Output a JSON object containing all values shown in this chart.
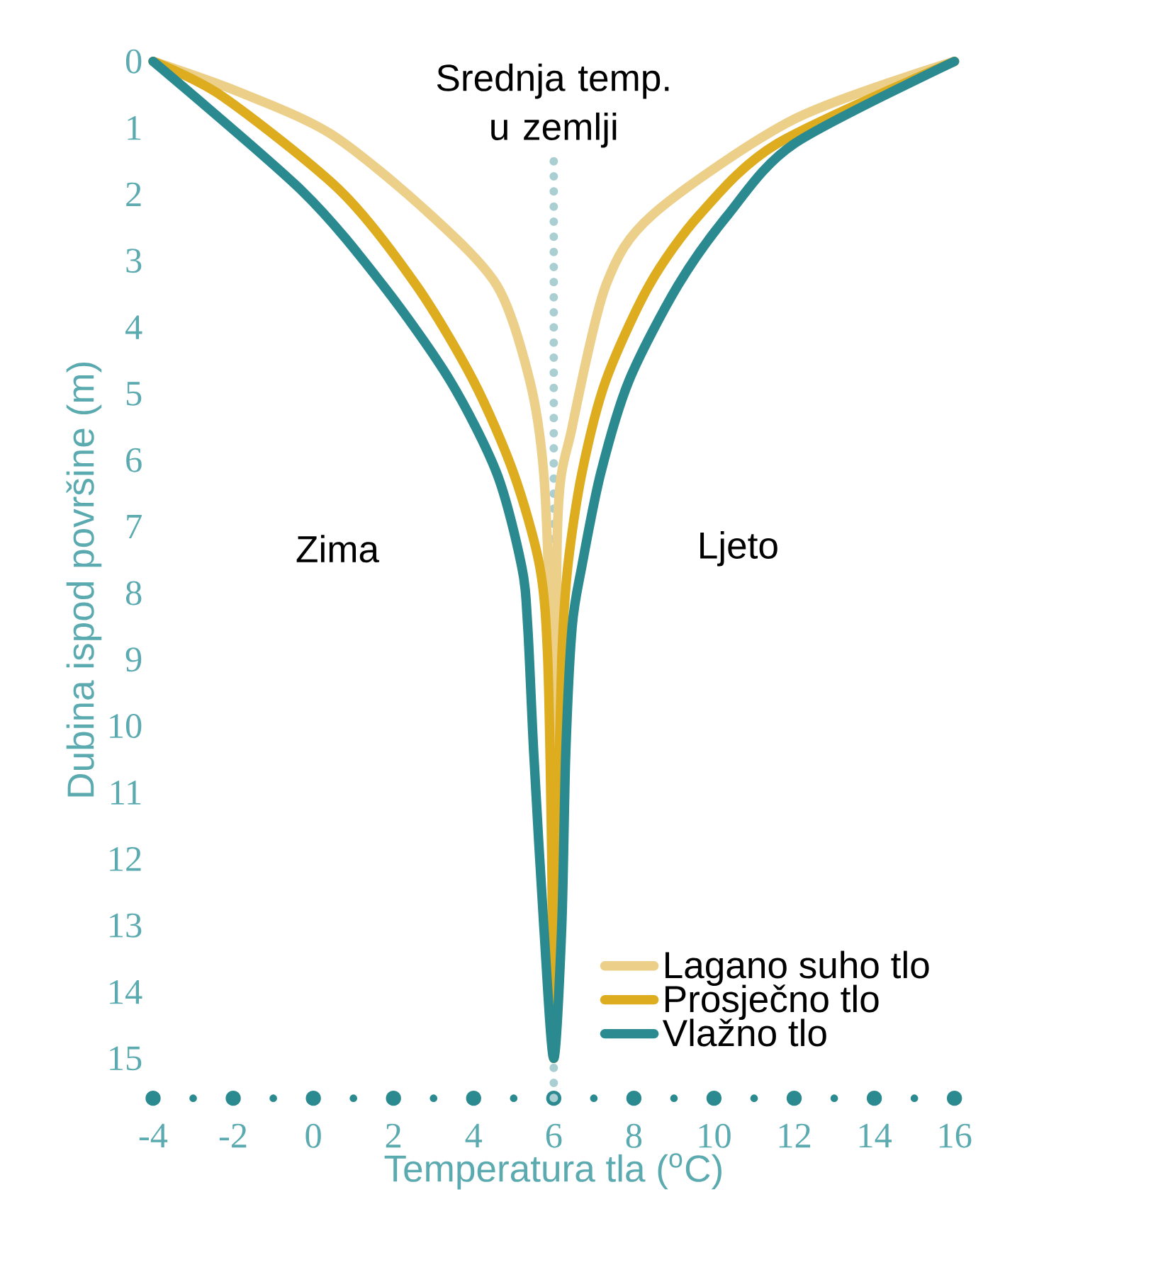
{
  "chart_data": {
    "type": "line",
    "xlabel": "Temperatura tla ($^{o}$C)",
    "ylabel": "Dubina ispod površine (m)",
    "xlim": [
      -4,
      16
    ],
    "ylim": [
      15.6,
      0
    ],
    "xticks": [
      -4,
      -2,
      0,
      2,
      4,
      6,
      8,
      10,
      12,
      14,
      16
    ],
    "yticks": [
      0,
      1,
      2,
      3,
      4,
      5,
      6,
      7,
      8,
      9,
      10,
      11,
      12,
      13,
      14,
      15
    ],
    "series": [
      {
        "name": "Lagano suho tlo",
        "color": "#ecd08a",
        "x": [
          -4,
          -1.9,
          0.43,
          2.8,
          4.58,
          5.4,
          5.75,
          5.9,
          5.97,
          6,
          6.03,
          6.1,
          6.46,
          7.3,
          8.48,
          12.0,
          16
        ],
        "values": [
          0,
          0.45,
          1.09,
          2.24,
          3.37,
          4.8,
          6.2,
          8.5,
          12,
          15,
          12,
          6.9,
          5.5,
          3.37,
          2.3,
          0.87,
          0
        ]
      },
      {
        "name": "Prosječno tlo",
        "color": "#ddac1f",
        "x": [
          -4,
          -2.26,
          0.68,
          2.57,
          3.99,
          5.0,
          5.65,
          5.85,
          5.95,
          6,
          6.08,
          6.2,
          6.35,
          6.7,
          7.3,
          8.38,
          9.65,
          11.57,
          16
        ],
        "values": [
          0,
          0.53,
          1.95,
          3.37,
          4.8,
          6.2,
          7.6,
          9,
          12,
          15,
          12,
          9,
          7.6,
          6.2,
          4.8,
          3.37,
          2.3,
          1.24,
          0
        ]
      },
      {
        "name": "Vlažno tlo",
        "color": "#2a8a90",
        "x": [
          -4,
          -0.28,
          1.74,
          3.41,
          4.58,
          5.2,
          5.35,
          5.5,
          5.75,
          6,
          6.2,
          6.3,
          6.46,
          6.7,
          7.17,
          7.88,
          9.1,
          10.36,
          12.0,
          16
        ],
        "values": [
          0,
          1.95,
          3.37,
          4.8,
          6.2,
          7.6,
          8.5,
          10.4,
          13,
          15,
          13,
          10.4,
          8.5,
          7.6,
          6.2,
          4.8,
          3.37,
          2.3,
          1.24,
          0
        ]
      }
    ],
    "ref_lines": [
      {
        "axis": "x",
        "value": 6,
        "label": "Srednja temp. u zemlji",
        "color": "#a9cfd2",
        "line_style": "dotted"
      }
    ],
    "annotations": [
      "Zima",
      "Ljeto"
    ],
    "legend": "bottom right"
  }
}
